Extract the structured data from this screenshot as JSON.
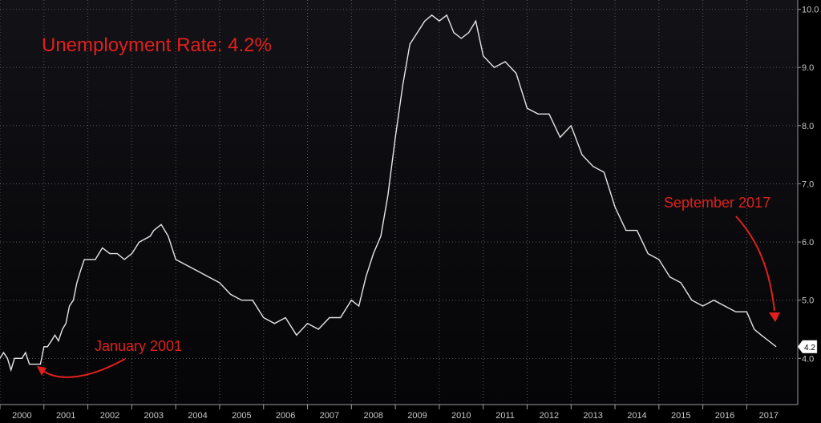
{
  "chart_data": {
    "type": "line",
    "title": "Unemployment Rate: 4.2%",
    "xlabel": "",
    "ylabel": "",
    "x_ticks": [
      "2000",
      "2001",
      "2002",
      "2003",
      "2004",
      "2005",
      "2006",
      "2007",
      "2008",
      "2009",
      "2010",
      "2011",
      "2012",
      "2013",
      "2014",
      "2015",
      "2016",
      "2017"
    ],
    "y_ticks": [
      4.0,
      5.0,
      6.0,
      7.0,
      8.0,
      9.0,
      10.0
    ],
    "ylim": [
      3.55,
      10.05
    ],
    "xlim": [
      2000.0,
      2017.85
    ],
    "grid": true,
    "colors": {
      "background": "#0c0c10",
      "line": "#e6e6e6",
      "grid": "#5a5a5a",
      "annotation": "#e0201c"
    },
    "last_value_label": "4.2",
    "annotations": [
      {
        "text": "January 2001",
        "x": 2001.0,
        "y": 4.2
      },
      {
        "text": "September 2017",
        "x": 2017.7,
        "y": 4.2
      }
    ],
    "series": [
      {
        "x": [
          2000.0,
          2000.08,
          2000.17,
          2000.25,
          2000.33,
          2000.42,
          2000.5,
          2000.58,
          2000.67,
          2000.75,
          2000.83,
          2000.92,
          2001.0,
          2001.08,
          2001.17,
          2001.25,
          2001.33,
          2001.42,
          2001.5,
          2001.58,
          2001.67,
          2001.75,
          2001.83,
          2001.92,
          2002.0,
          2002.17,
          2002.33,
          2002.5,
          2002.67,
          2002.83,
          2003.0,
          2003.17,
          2003.42,
          2003.5,
          2003.67,
          2003.83,
          2004.0,
          2004.25,
          2004.5,
          2004.75,
          2005.0,
          2005.25,
          2005.5,
          2005.75,
          2006.0,
          2006.25,
          2006.5,
          2006.75,
          2007.0,
          2007.25,
          2007.5,
          2007.75,
          2008.0,
          2008.17,
          2008.33,
          2008.5,
          2008.67,
          2008.83,
          2009.0,
          2009.17,
          2009.33,
          2009.5,
          2009.67,
          2009.83,
          2010.0,
          2010.17,
          2010.33,
          2010.5,
          2010.67,
          2010.83,
          2011.0,
          2011.25,
          2011.5,
          2011.75,
          2012.0,
          2012.25,
          2012.5,
          2012.75,
          2013.0,
          2013.25,
          2013.5,
          2013.75,
          2014.0,
          2014.25,
          2014.5,
          2014.75,
          2015.0,
          2015.25,
          2015.5,
          2015.75,
          2016.0,
          2016.25,
          2016.5,
          2016.75,
          2017.0,
          2017.17,
          2017.33,
          2017.5,
          2017.67
        ],
        "values": [
          4.0,
          4.1,
          4.0,
          3.8,
          4.0,
          4.0,
          4.0,
          4.1,
          3.9,
          3.9,
          3.9,
          3.9,
          4.2,
          4.2,
          4.3,
          4.4,
          4.3,
          4.5,
          4.6,
          4.9,
          5.0,
          5.3,
          5.5,
          5.7,
          5.7,
          5.7,
          5.9,
          5.8,
          5.8,
          5.7,
          5.8,
          6.0,
          6.1,
          6.2,
          6.3,
          6.1,
          5.7,
          5.6,
          5.5,
          5.4,
          5.3,
          5.1,
          5.0,
          5.0,
          4.7,
          4.6,
          4.7,
          4.4,
          4.6,
          4.5,
          4.7,
          4.7,
          5.0,
          4.9,
          5.4,
          5.8,
          6.1,
          6.8,
          7.8,
          8.7,
          9.4,
          9.6,
          9.8,
          9.9,
          9.8,
          9.9,
          9.6,
          9.5,
          9.6,
          9.8,
          9.2,
          9.0,
          9.1,
          8.9,
          8.3,
          8.2,
          8.2,
          7.8,
          8.0,
          7.5,
          7.3,
          7.2,
          6.6,
          6.2,
          6.2,
          5.8,
          5.7,
          5.4,
          5.3,
          5.0,
          4.9,
          5.0,
          4.9,
          4.8,
          4.8,
          4.5,
          4.4,
          4.3,
          4.2
        ]
      }
    ]
  }
}
